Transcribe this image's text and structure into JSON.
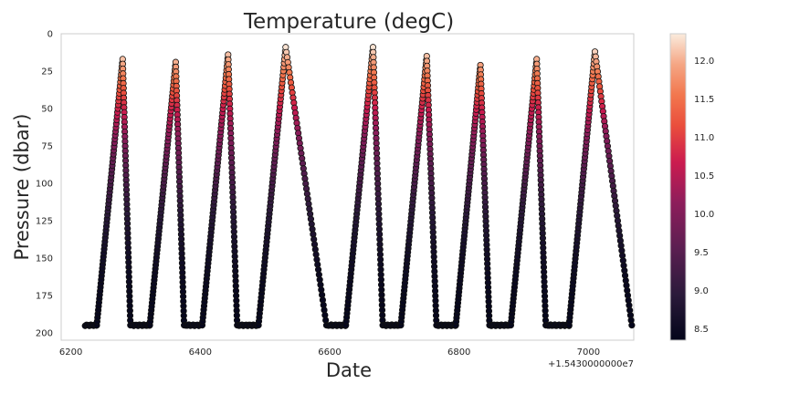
{
  "chart_data": {
    "type": "scatter",
    "title": "Temperature (degC)",
    "xlabel": "Date",
    "ylabel": "Pressure (dbar)",
    "x_offset_label": "+1.5430000000e7",
    "x_offset": 15430000,
    "xlim": [
      6185,
      7070
    ],
    "ylim": [
      205,
      0
    ],
    "y_inverted": true,
    "x_ticks": [
      6200,
      6400,
      6600,
      6800,
      7000
    ],
    "x_tick_labels": [
      "6200",
      "6400",
      "6600",
      "6800",
      "7000"
    ],
    "y_ticks": [
      0,
      25,
      50,
      75,
      100,
      125,
      150,
      175,
      200
    ],
    "y_tick_labels": [
      "0",
      "25",
      "50",
      "75",
      "100",
      "125",
      "150",
      "175",
      "200"
    ],
    "grid": false,
    "colorbar": {
      "label": "",
      "colormap": "rocket",
      "range": [
        8.35,
        12.35
      ],
      "ticks": [
        8.5,
        9.0,
        9.5,
        10.0,
        10.5,
        11.0,
        11.5,
        12.0
      ],
      "tick_labels": [
        "8.5",
        "9.0",
        "9.5",
        "10.0",
        "10.5",
        "11.0",
        "11.5",
        "12.0"
      ]
    },
    "profiles": [
      {
        "bottom_start": 6222,
        "ascent_start": 6240,
        "top_x": 6280,
        "top_p": 17,
        "descent_end": 6292,
        "top_temp": 12.1
      },
      {
        "bottom_start": 6295,
        "ascent_start": 6322,
        "top_x": 6362,
        "top_p": 19,
        "descent_end": 6375,
        "top_temp": 12.0
      },
      {
        "bottom_start": 6378,
        "ascent_start": 6403,
        "top_x": 6443,
        "top_p": 14,
        "descent_end": 6457,
        "top_temp": 12.1
      },
      {
        "bottom_start": 6460,
        "ascent_start": 6490,
        "top_x": 6532,
        "top_p": 9,
        "descent_end": 6595,
        "top_temp": 12.3
      },
      {
        "bottom_start": 6598,
        "ascent_start": 6625,
        "top_x": 6667,
        "top_p": 9,
        "descent_end": 6682,
        "top_temp": 12.3
      },
      {
        "bottom_start": 6685,
        "ascent_start": 6710,
        "top_x": 6750,
        "top_p": 15,
        "descent_end": 6765,
        "top_temp": 12.1
      },
      {
        "bottom_start": 6768,
        "ascent_start": 6795,
        "top_x": 6833,
        "top_p": 21,
        "descent_end": 6847,
        "top_temp": 11.9
      },
      {
        "bottom_start": 6850,
        "ascent_start": 6880,
        "top_x": 6920,
        "top_p": 17,
        "descent_end": 6934,
        "top_temp": 12.0
      },
      {
        "bottom_start": 6937,
        "ascent_start": 6970,
        "top_x": 7010,
        "top_p": 12,
        "descent_end": 7067,
        "top_temp": 12.2
      }
    ],
    "bottom_pressure": 195,
    "bottom_temp": 8.4
  }
}
